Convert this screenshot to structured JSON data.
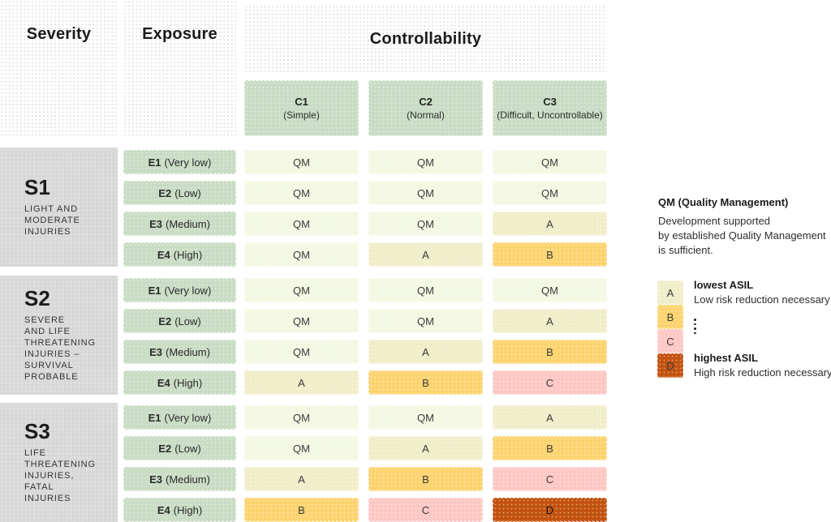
{
  "headers": {
    "severity": "Severity",
    "exposure": "Exposure",
    "controllability": "Controllability"
  },
  "controllability_columns": [
    {
      "code": "C1",
      "label": "(Simple)"
    },
    {
      "code": "C2",
      "label": "(Normal)"
    },
    {
      "code": "C3",
      "label": "(Difficult, Uncontrollable)"
    }
  ],
  "severity_groups": [
    {
      "code": "S1",
      "description": "LIGHT AND\nMODERATE\nINJURIES",
      "rows": [
        {
          "exposure_code": "E1",
          "exposure_label": "(Very low)",
          "values": [
            "QM",
            "QM",
            "QM"
          ]
        },
        {
          "exposure_code": "E2",
          "exposure_label": "(Low)",
          "values": [
            "QM",
            "QM",
            "QM"
          ]
        },
        {
          "exposure_code": "E3",
          "exposure_label": "(Medium)",
          "values": [
            "QM",
            "QM",
            "A"
          ]
        },
        {
          "exposure_code": "E4",
          "exposure_label": "(High)",
          "values": [
            "QM",
            "A",
            "B"
          ]
        }
      ]
    },
    {
      "code": "S2",
      "description": "SEVERE\nAND LIFE\nTHREATENING\nINJURIES –\nSURVIVAL\nPROBABLE",
      "rows": [
        {
          "exposure_code": "E1",
          "exposure_label": "(Very low)",
          "values": [
            "QM",
            "QM",
            "QM"
          ]
        },
        {
          "exposure_code": "E2",
          "exposure_label": "(Low)",
          "values": [
            "QM",
            "QM",
            "A"
          ]
        },
        {
          "exposure_code": "E3",
          "exposure_label": "(Medium)",
          "values": [
            "QM",
            "A",
            "B"
          ]
        },
        {
          "exposure_code": "E4",
          "exposure_label": "(High)",
          "values": [
            "A",
            "B",
            "C"
          ]
        }
      ]
    },
    {
      "code": "S3",
      "description": "LIFE\nTHREATENING\nINJURIES,\nFATAL\nINJURIES",
      "rows": [
        {
          "exposure_code": "E1",
          "exposure_label": "(Very low)",
          "values": [
            "QM",
            "QM",
            "A"
          ]
        },
        {
          "exposure_code": "E2",
          "exposure_label": "(Low)",
          "values": [
            "QM",
            "A",
            "B"
          ]
        },
        {
          "exposure_code": "E3",
          "exposure_label": "(Medium)",
          "values": [
            "A",
            "B",
            "C"
          ]
        },
        {
          "exposure_code": "E4",
          "exposure_label": "(High)",
          "values": [
            "B",
            "C",
            "D"
          ]
        }
      ]
    }
  ],
  "legend": {
    "qm_title": "QM (Quality Management)",
    "qm_lines": [
      "Development supported",
      "by established Quality Management",
      "is sufficient."
    ],
    "swatches": [
      {
        "code": "A",
        "color": "#f0eec9"
      },
      {
        "code": "B",
        "color": "#fcd36e"
      },
      {
        "code": "C",
        "color": "#fdc7c4"
      },
      {
        "code": "D",
        "color": "#c2520e"
      }
    ],
    "lowest_title": "lowest ASIL",
    "lowest_desc": "Low risk reduction necessary",
    "highest_title": "highest ASIL",
    "highest_desc": "High risk reduction necessary"
  },
  "colors": {
    "green_cell": "#c9dcc4",
    "gray_block": "#d8d8d8",
    "QM": "#f3f8e3",
    "A": "#f0eec9",
    "B": "#fcd36e",
    "C": "#fdc7c4",
    "D": "#c2520e"
  }
}
